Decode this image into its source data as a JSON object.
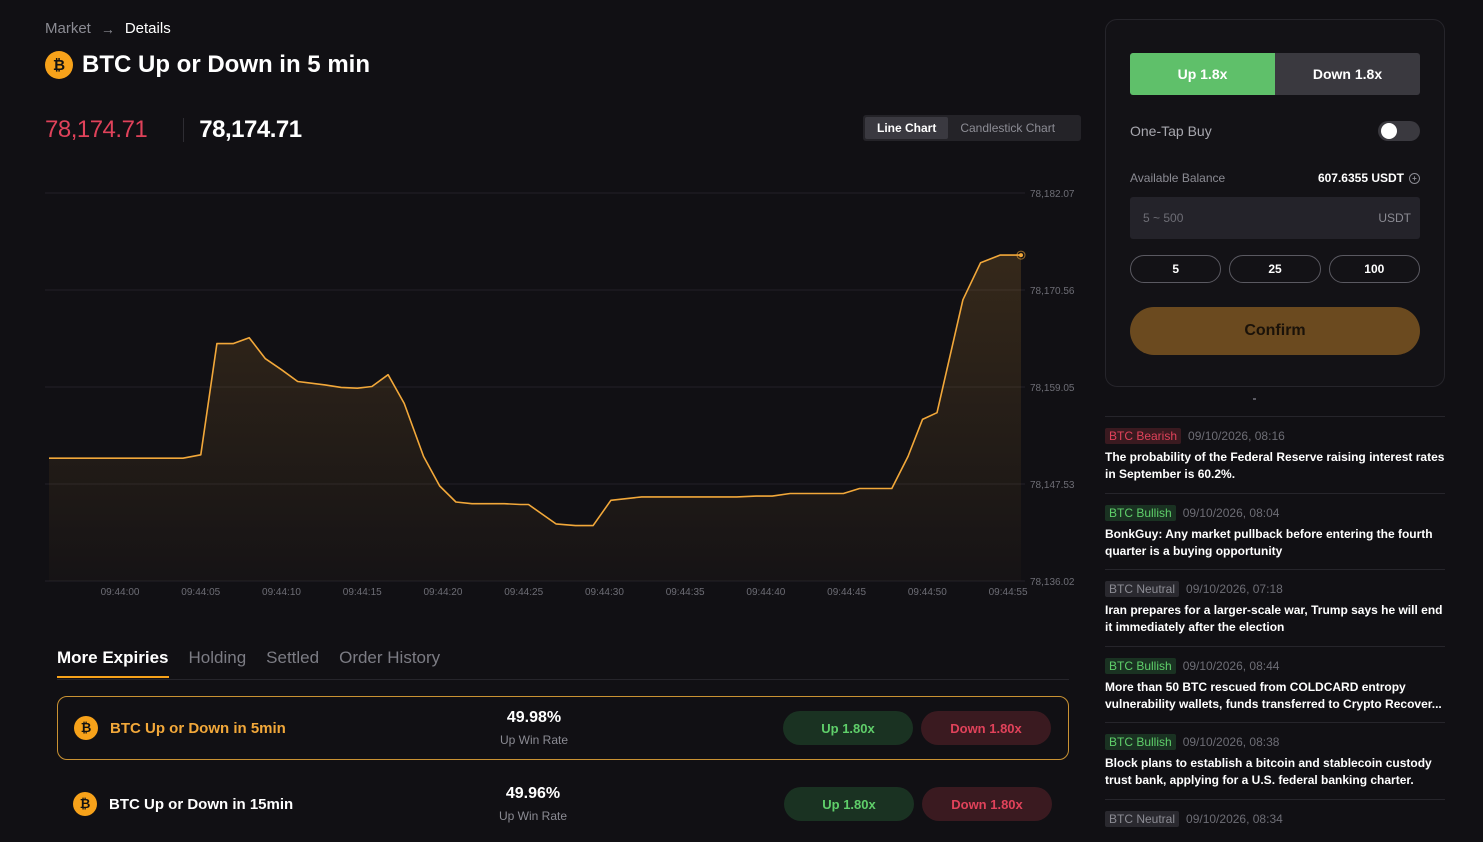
{
  "breadcrumb": {
    "root": "Market",
    "separator": "→",
    "current": "Details"
  },
  "header": {
    "icon": "bitcoin-icon",
    "icon_glyph": "₿",
    "title": "BTC Up or Down in 5 min"
  },
  "prices": {
    "mark_price": "78,174.71",
    "last_price": "78,174.71",
    "mark_color": "#e0425a"
  },
  "chart_toggle": {
    "line": "Line Chart",
    "candle": "Candlestick Chart",
    "active": "line"
  },
  "chart_data": {
    "type": "area",
    "title": "",
    "xlabel": "",
    "ylabel": "",
    "ylim": [
      78136.02,
      78182.07
    ],
    "y_ticks": [
      "78,182.07",
      "78,170.56",
      "78,159.05",
      "78,147.53",
      "78,136.02"
    ],
    "y_tick_values": [
      78182.07,
      78170.56,
      78159.05,
      78147.53,
      78136.02
    ],
    "x_ticks": [
      "09:44:00",
      "09:44:05",
      "09:44:10",
      "09:44:15",
      "09:44:20",
      "09:44:25",
      "09:44:30",
      "09:44:35",
      "09:44:40",
      "09:44:45",
      "09:44:50",
      "09:44:55"
    ],
    "series": [
      {
        "color": "#f2a83a",
        "x": [
          -4.4,
          -1.1,
          0.0,
          1.0,
          2.0,
          2.9,
          3.9,
          5.0,
          6.0,
          7.0,
          8.0,
          9.0,
          10.0,
          11.0,
          12.7,
          13.7,
          14.7,
          15.6,
          16.6,
          17.6,
          18.8,
          19.8,
          20.8,
          21.8,
          22.5,
          23.8,
          24.8,
          25.3,
          27.0,
          28.2,
          29.3,
          30.4,
          32.3,
          33.5,
          34.6,
          35.5,
          36.5,
          38.2,
          39.4,
          40.4,
          41.5,
          42.8,
          43.8,
          44.8,
          45.8,
          46.8,
          47.8,
          48.8,
          49.7,
          50.6,
          52.2,
          53.3,
          54.5,
          55.8
        ],
        "y": [
          78150.6,
          78150.6,
          78150.6,
          78150.6,
          78150.6,
          78150.6,
          78150.6,
          78151.0,
          78164.2,
          78164.2,
          78164.9,
          78162.4,
          78161.1,
          78159.7,
          78159.3,
          78159.0,
          78158.9,
          78159.1,
          78160.5,
          78157.1,
          78150.8,
          78147.3,
          78145.4,
          78145.2,
          78145.2,
          78145.2,
          78145.1,
          78145.1,
          78142.8,
          78142.6,
          78142.6,
          78145.6,
          78146.0,
          78146.0,
          78146.0,
          78146.0,
          78146.0,
          78146.0,
          78146.1,
          78146.1,
          78146.4,
          78146.4,
          78146.4,
          78146.4,
          78147.0,
          78147.0,
          78147.0,
          78150.8,
          78155.2,
          78156.0,
          78169.4,
          78173.8,
          78174.7,
          78174.7
        ]
      }
    ],
    "grid": true,
    "legend": "none"
  },
  "tabs": [
    {
      "label": "More Expiries",
      "active": true
    },
    {
      "label": "Holding",
      "active": false
    },
    {
      "label": "Settled",
      "active": false
    },
    {
      "label": "Order History",
      "active": false
    }
  ],
  "expiries": [
    {
      "name": "BTC Up or Down in 5min",
      "rate": "49.98%",
      "rate_label": "Up Win Rate",
      "up": "Up 1.80x",
      "down": "Down 1.80x",
      "selected": true
    },
    {
      "name": "BTC Up or Down in 15min",
      "rate": "49.96%",
      "rate_label": "Up Win Rate",
      "up": "Up 1.80x",
      "down": "Down 1.80x",
      "selected": false
    }
  ],
  "trade": {
    "up_label": "Up 1.8x",
    "down_label": "Down 1.8x",
    "one_tap_label": "One-Tap Buy",
    "one_tap_on": false,
    "balance_label": "Available Balance",
    "balance_value": "607.6355 USDT",
    "amount_placeholder": "5 ~ 500",
    "amount_value": "",
    "amount_unit": "USDT",
    "quick_amounts": [
      "5",
      "25",
      "100"
    ],
    "confirm_label": "Confirm",
    "up_color": "#5fc06a",
    "confirm_color": "#6b4a1f"
  },
  "news": [
    {
      "tag": "BTC Bearish",
      "sentiment": "bearish",
      "time": "09/10/2026, 08:16",
      "text": "The probability of the Federal Reserve raising interest rates in September is 60.2%."
    },
    {
      "tag": "BTC Bullish",
      "sentiment": "bullish",
      "time": "09/10/2026, 08:04",
      "text": "BonkGuy: Any market pullback before entering the fourth quarter is a buying opportunity"
    },
    {
      "tag": "BTC Neutral",
      "sentiment": "neutral",
      "time": "09/10/2026, 07:18",
      "text": "Iran prepares for a larger-scale war, Trump says he will end it immediately after the election"
    },
    {
      "tag": "BTC Bullish",
      "sentiment": "bullish",
      "time": "09/10/2026, 08:44",
      "text": "More than 50 BTC rescued from COLDCARD entropy vulnerability wallets, funds transferred to Crypto Recover..."
    },
    {
      "tag": "BTC Bullish",
      "sentiment": "bullish",
      "time": "09/10/2026, 08:38",
      "text": "Block plans to establish a bitcoin and stablecoin custody trust bank, applying for a U.S. federal banking charter."
    },
    {
      "tag": "BTC Neutral",
      "sentiment": "neutral",
      "time": "09/10/2026, 08:34",
      "text": ""
    }
  ]
}
